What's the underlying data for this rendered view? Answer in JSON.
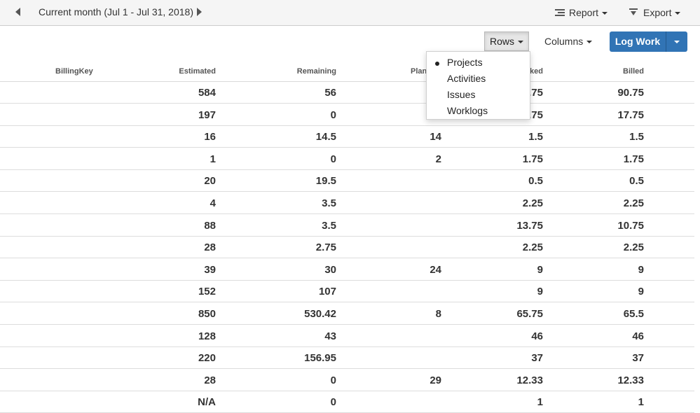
{
  "topbar": {
    "period_label": "Current month (Jul 1 - Jul 31, 2018)",
    "report_label": "Report",
    "export_label": "Export"
  },
  "toolbar": {
    "rows_label": "Rows",
    "columns_label": "Columns",
    "logwork_label": "Log Work"
  },
  "rows_menu": {
    "items": [
      "Projects",
      "Activities",
      "Issues",
      "Worklogs"
    ],
    "selected": "Projects"
  },
  "table": {
    "headers": {
      "billingkey": "BillingKey",
      "estimated": "Estimated",
      "remaining": "Remaining",
      "planned": "Plan",
      "worked": "ked",
      "billed": "Billed"
    },
    "rows": [
      {
        "estimated": "584",
        "remaining": "56",
        "planned": "",
        "worked": ".75",
        "billed": "90.75"
      },
      {
        "estimated": "197",
        "remaining": "0",
        "planned": "",
        "worked": ".75",
        "billed": "17.75"
      },
      {
        "estimated": "16",
        "remaining": "14.5",
        "planned": "14",
        "worked": "1.5",
        "billed": "1.5"
      },
      {
        "estimated": "1",
        "remaining": "0",
        "planned": "2",
        "worked": "1.75",
        "billed": "1.75"
      },
      {
        "estimated": "20",
        "remaining": "19.5",
        "planned": "",
        "worked": "0.5",
        "billed": "0.5"
      },
      {
        "estimated": "4",
        "remaining": "3.5",
        "planned": "",
        "worked": "2.25",
        "billed": "2.25"
      },
      {
        "estimated": "88",
        "remaining": "3.5",
        "planned": "",
        "worked": "13.75",
        "billed": "10.75"
      },
      {
        "estimated": "28",
        "remaining": "2.75",
        "planned": "",
        "worked": "2.25",
        "billed": "2.25"
      },
      {
        "estimated": "39",
        "remaining": "30",
        "planned": "24",
        "worked": "9",
        "billed": "9"
      },
      {
        "estimated": "152",
        "remaining": "107",
        "planned": "",
        "worked": "9",
        "billed": "9"
      },
      {
        "estimated": "850",
        "remaining": "530.42",
        "planned": "8",
        "worked": "65.75",
        "billed": "65.5"
      },
      {
        "estimated": "128",
        "remaining": "43",
        "planned": "",
        "worked": "46",
        "billed": "46"
      },
      {
        "estimated": "220",
        "remaining": "156.95",
        "planned": "",
        "worked": "37",
        "billed": "37"
      },
      {
        "estimated": "28",
        "remaining": "0",
        "planned": "29",
        "worked": "12.33",
        "billed": "12.33"
      },
      {
        "estimated": "N/A",
        "remaining": "0",
        "planned": "",
        "worked": "1",
        "billed": "1"
      }
    ]
  },
  "colors": {
    "primary": "#3174b5",
    "topbar_bg": "#f5f5f5",
    "text": "#333333"
  }
}
